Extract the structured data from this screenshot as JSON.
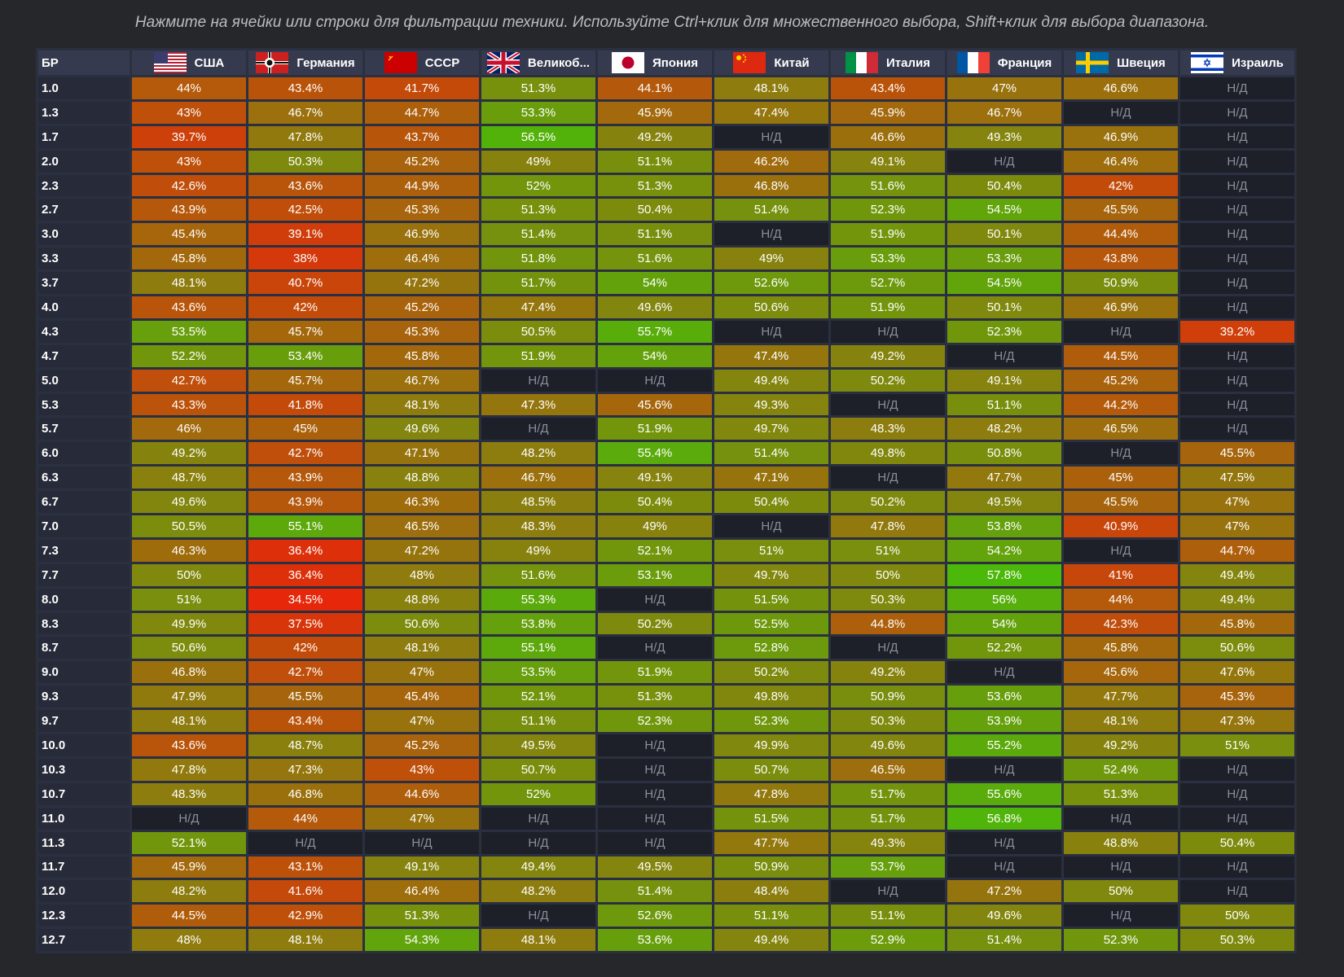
{
  "hint": "Нажмите на ячейки или строки для фильтрации техники. Используйте Ctrl+клик для множественного выбора, Shift+клик для выбора диапазона.",
  "table": {
    "br_header": "БР",
    "na_label": "Н/Д",
    "countries": [
      {
        "name": "США",
        "flag": "usa-flag-icon"
      },
      {
        "name": "Германия",
        "flag": "germany-flag-icon"
      },
      {
        "name": "СССР",
        "flag": "ussr-flag-icon"
      },
      {
        "name": "Великоб...",
        "flag": "uk-flag-icon"
      },
      {
        "name": "Япония",
        "flag": "japan-flag-icon"
      },
      {
        "name": "Китай",
        "flag": "china-flag-icon"
      },
      {
        "name": "Италия",
        "flag": "italy-flag-icon"
      },
      {
        "name": "Франция",
        "flag": "france-flag-icon"
      },
      {
        "name": "Швеция",
        "flag": "sweden-flag-icon"
      },
      {
        "name": "Израиль",
        "flag": "israel-flag-icon"
      }
    ],
    "rows": [
      {
        "br": "1.0",
        "values": [
          "44%",
          "43.4%",
          "41.7%",
          "51.3%",
          "44.1%",
          "48.1%",
          "43.4%",
          "47%",
          "46.6%",
          null
        ]
      },
      {
        "br": "1.3",
        "values": [
          "43%",
          "46.7%",
          "44.7%",
          "53.3%",
          "45.9%",
          "47.4%",
          "45.9%",
          "46.7%",
          null,
          null
        ]
      },
      {
        "br": "1.7",
        "values": [
          "39.7%",
          "47.8%",
          "43.7%",
          "56.5%",
          "49.2%",
          null,
          "46.6%",
          "49.3%",
          "46.9%",
          null
        ]
      },
      {
        "br": "2.0",
        "values": [
          "43%",
          "50.3%",
          "45.2%",
          "49%",
          "51.1%",
          "46.2%",
          "49.1%",
          null,
          "46.4%",
          null
        ]
      },
      {
        "br": "2.3",
        "values": [
          "42.6%",
          "43.6%",
          "44.9%",
          "52%",
          "51.3%",
          "46.8%",
          "51.6%",
          "50.4%",
          "42%",
          null
        ]
      },
      {
        "br": "2.7",
        "values": [
          "43.9%",
          "42.5%",
          "45.3%",
          "51.3%",
          "50.4%",
          "51.4%",
          "52.3%",
          "54.5%",
          "45.5%",
          null
        ]
      },
      {
        "br": "3.0",
        "values": [
          "45.4%",
          "39.1%",
          "46.9%",
          "51.4%",
          "51.1%",
          null,
          "51.9%",
          "50.1%",
          "44.4%",
          null
        ]
      },
      {
        "br": "3.3",
        "values": [
          "45.8%",
          "38%",
          "46.4%",
          "51.8%",
          "51.6%",
          "49%",
          "53.3%",
          "53.3%",
          "43.8%",
          null
        ]
      },
      {
        "br": "3.7",
        "values": [
          "48.1%",
          "40.7%",
          "47.2%",
          "51.7%",
          "54%",
          "52.6%",
          "52.7%",
          "54.5%",
          "50.9%",
          null
        ]
      },
      {
        "br": "4.0",
        "values": [
          "43.6%",
          "42%",
          "45.2%",
          "47.4%",
          "49.6%",
          "50.6%",
          "51.9%",
          "50.1%",
          "46.9%",
          null
        ]
      },
      {
        "br": "4.3",
        "values": [
          "53.5%",
          "45.7%",
          "45.3%",
          "50.5%",
          "55.7%",
          null,
          null,
          "52.3%",
          null,
          "39.2%"
        ]
      },
      {
        "br": "4.7",
        "values": [
          "52.2%",
          "53.4%",
          "45.8%",
          "51.9%",
          "54%",
          "47.4%",
          "49.2%",
          null,
          "44.5%",
          null
        ]
      },
      {
        "br": "5.0",
        "values": [
          "42.7%",
          "45.7%",
          "46.7%",
          null,
          null,
          "49.4%",
          "50.2%",
          "49.1%",
          "45.2%",
          null
        ]
      },
      {
        "br": "5.3",
        "values": [
          "43.3%",
          "41.8%",
          "48.1%",
          "47.3%",
          "45.6%",
          "49.3%",
          null,
          "51.1%",
          "44.2%",
          null
        ]
      },
      {
        "br": "5.7",
        "values": [
          "46%",
          "45%",
          "49.6%",
          null,
          "51.9%",
          "49.7%",
          "48.3%",
          "48.2%",
          "46.5%",
          null
        ]
      },
      {
        "br": "6.0",
        "values": [
          "49.2%",
          "42.7%",
          "47.1%",
          "48.2%",
          "55.4%",
          "51.4%",
          "49.8%",
          "50.8%",
          null,
          "45.5%"
        ]
      },
      {
        "br": "6.3",
        "values": [
          "48.7%",
          "43.9%",
          "48.8%",
          "46.7%",
          "49.1%",
          "47.1%",
          null,
          "47.7%",
          "45%",
          "47.5%"
        ]
      },
      {
        "br": "6.7",
        "values": [
          "49.6%",
          "43.9%",
          "46.3%",
          "48.5%",
          "50.4%",
          "50.4%",
          "50.2%",
          "49.5%",
          "45.5%",
          "47%"
        ]
      },
      {
        "br": "7.0",
        "values": [
          "50.5%",
          "55.1%",
          "46.5%",
          "48.3%",
          "49%",
          null,
          "47.8%",
          "53.8%",
          "40.9%",
          "47%"
        ]
      },
      {
        "br": "7.3",
        "values": [
          "46.3%",
          "36.4%",
          "47.2%",
          "49%",
          "52.1%",
          "51%",
          "51%",
          "54.2%",
          null,
          "44.7%"
        ]
      },
      {
        "br": "7.7",
        "values": [
          "50%",
          "36.4%",
          "48%",
          "51.6%",
          "53.1%",
          "49.7%",
          "50%",
          "57.8%",
          "41%",
          "49.4%"
        ]
      },
      {
        "br": "8.0",
        "values": [
          "51%",
          "34.5%",
          "48.8%",
          "55.3%",
          null,
          "51.5%",
          "50.3%",
          "56%",
          "44%",
          "49.4%"
        ]
      },
      {
        "br": "8.3",
        "values": [
          "49.9%",
          "37.5%",
          "50.6%",
          "53.8%",
          "50.2%",
          "52.5%",
          "44.8%",
          "54%",
          "42.3%",
          "45.8%"
        ]
      },
      {
        "br": "8.7",
        "values": [
          "50.6%",
          "42%",
          "48.1%",
          "55.1%",
          null,
          "52.8%",
          null,
          "52.2%",
          "45.8%",
          "50.6%"
        ]
      },
      {
        "br": "9.0",
        "values": [
          "46.8%",
          "42.7%",
          "47%",
          "53.5%",
          "51.9%",
          "50.2%",
          "49.2%",
          null,
          "45.6%",
          "47.6%"
        ]
      },
      {
        "br": "9.3",
        "values": [
          "47.9%",
          "45.5%",
          "45.4%",
          "52.1%",
          "51.3%",
          "49.8%",
          "50.9%",
          "53.6%",
          "47.7%",
          "45.3%"
        ]
      },
      {
        "br": "9.7",
        "values": [
          "48.1%",
          "43.4%",
          "47%",
          "51.1%",
          "52.3%",
          "52.3%",
          "50.3%",
          "53.9%",
          "48.1%",
          "47.3%"
        ]
      },
      {
        "br": "10.0",
        "values": [
          "43.6%",
          "48.7%",
          "45.2%",
          "49.5%",
          null,
          "49.9%",
          "49.6%",
          "55.2%",
          "49.2%",
          "51%"
        ]
      },
      {
        "br": "10.3",
        "values": [
          "47.8%",
          "47.3%",
          "43%",
          "50.7%",
          null,
          "50.7%",
          "46.5%",
          null,
          "52.4%",
          null
        ]
      },
      {
        "br": "10.7",
        "values": [
          "48.3%",
          "46.8%",
          "44.6%",
          "52%",
          null,
          "47.8%",
          "51.7%",
          "55.6%",
          "51.3%",
          null
        ]
      },
      {
        "br": "11.0",
        "values": [
          null,
          "44%",
          "47%",
          null,
          null,
          "51.5%",
          "51.7%",
          "56.8%",
          null,
          null
        ]
      },
      {
        "br": "11.3",
        "values": [
          "52.1%",
          null,
          null,
          null,
          null,
          "47.7%",
          "49.3%",
          null,
          "48.8%",
          "50.4%"
        ]
      },
      {
        "br": "11.7",
        "values": [
          "45.9%",
          "43.1%",
          "49.1%",
          "49.4%",
          "49.5%",
          "50.9%",
          "53.7%",
          null,
          null,
          null
        ]
      },
      {
        "br": "12.0",
        "values": [
          "48.2%",
          "41.6%",
          "46.4%",
          "48.2%",
          "51.4%",
          "48.4%",
          null,
          "47.2%",
          "50%",
          null
        ]
      },
      {
        "br": "12.3",
        "values": [
          "44.5%",
          "42.9%",
          "51.3%",
          null,
          "52.6%",
          "51.1%",
          "51.1%",
          "49.6%",
          null,
          "50%"
        ]
      },
      {
        "br": "12.7",
        "values": [
          "48%",
          "48.1%",
          "54.3%",
          "48.1%",
          "53.6%",
          "49.4%",
          "52.9%",
          "51.4%",
          "52.3%",
          "50.3%"
        ]
      }
    ]
  },
  "colors": {
    "background": "#25272b",
    "na_cell": "#1d2029",
    "header_cell": "#353a4e",
    "low": "#e8250a",
    "mid": "#8a7f0e",
    "high": "#4cb80a"
  }
}
